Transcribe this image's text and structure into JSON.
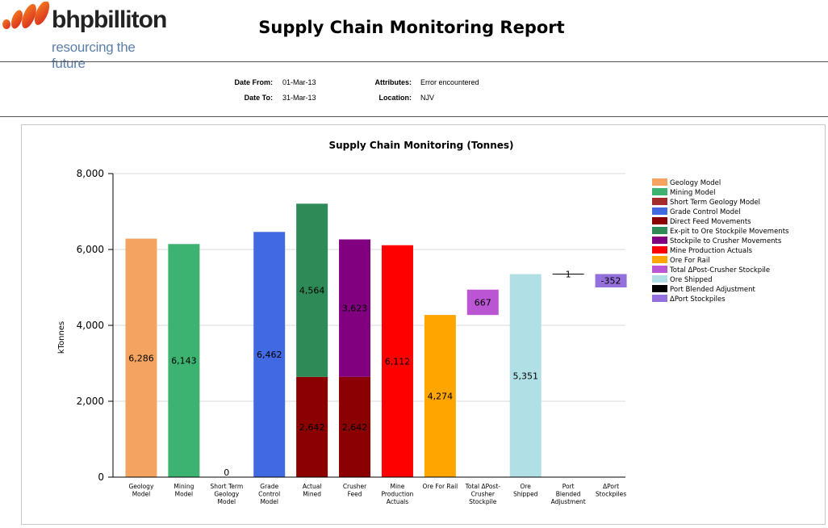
{
  "header": {
    "logo_word": "bhpbilliton",
    "logo_tagline": "resourcing the future",
    "report_title": "Supply Chain Monitoring Report"
  },
  "parameters": {
    "date_from_label": "Date From:",
    "date_from": "01-Mar-13",
    "date_to_label": "Date To:",
    "date_to": "31-Mar-13",
    "attributes_label": "Attributes:",
    "attributes": "Error encountered",
    "location_label": "Location:",
    "location": "NJV"
  },
  "colors": {
    "Geology Model": "#f4a460",
    "Mining Model": "#3cb371",
    "Short Term Geology Model": "#a52a2a",
    "Grade Control Model": "#4169e1",
    "Direct Feed Movements": "#8b0000",
    "Ex-pit to Ore Stockpile Movements": "#2e8b57",
    "Stockpile to Crusher Movements": "#800080",
    "Mine Production Actuals": "#ff0000",
    "Ore For Rail": "#ffa500",
    "Total ΔPost-Crusher Stockpile": "#ba55d3",
    "Ore Shipped": "#b0e0e6",
    "Port Blended Adjustment": "#000000",
    "ΔPort Stockpiles": "#9370db"
  },
  "chart_data": {
    "type": "bar",
    "title": "Supply Chain Monitoring (Tonnes)",
    "ylabel": "kTonnes",
    "ylim": [
      0,
      8000
    ],
    "yticks": [
      0,
      2000,
      4000,
      6000,
      8000
    ],
    "ytick_labels": [
      "0",
      "2,000",
      "4,000",
      "6,000",
      "8,000"
    ],
    "grid": true,
    "legend_position": "right",
    "categories": [
      [
        "Geology",
        "Model"
      ],
      [
        "Mining",
        "Model"
      ],
      [
        "Short Term",
        "Geology",
        "Model"
      ],
      [
        "Grade",
        "Control",
        "Model"
      ],
      [
        "Actual",
        "Mined"
      ],
      [
        "Crusher",
        "Feed"
      ],
      [
        "Mine",
        "Production",
        "Actuals"
      ],
      [
        "Ore For Rail"
      ],
      [
        "Total ΔPost-",
        "Crusher",
        "Stockpile"
      ],
      [
        "Ore",
        "Shipped"
      ],
      [
        "Port",
        "Blended",
        "Adjustment"
      ],
      [
        "ΔPort",
        "Stockpiles"
      ]
    ],
    "legend": [
      "Geology Model",
      "Mining Model",
      "Short Term Geology Model",
      "Grade Control Model",
      "Direct Feed Movements",
      "Ex-pit to Ore Stockpile Movements",
      "Stockpile to Crusher Movements",
      "Mine Production Actuals",
      "Ore For Rail",
      "Total ΔPost-Crusher Stockpile",
      "Ore Shipped",
      "Port Blended Adjustment",
      "ΔPort Stockpiles"
    ],
    "segments": [
      {
        "cat": 0,
        "series": "Geology Model",
        "base": 0,
        "value": 6286,
        "label": "6,286"
      },
      {
        "cat": 1,
        "series": "Mining Model",
        "base": 0,
        "value": 6143,
        "label": "6,143"
      },
      {
        "cat": 2,
        "series": "Short Term Geology Model",
        "base": 0,
        "value": 0,
        "label": "0"
      },
      {
        "cat": 3,
        "series": "Grade Control Model",
        "base": 0,
        "value": 6462,
        "label": "6,462"
      },
      {
        "cat": 4,
        "series": "Direct Feed Movements",
        "base": 0,
        "value": 2642,
        "label": "2,642"
      },
      {
        "cat": 4,
        "series": "Ex-pit to Ore Stockpile Movements",
        "base": 2642,
        "value": 4564,
        "label": "4,564"
      },
      {
        "cat": 5,
        "series": "Direct Feed Movements",
        "base": 0,
        "value": 2642,
        "label": "2,642"
      },
      {
        "cat": 5,
        "series": "Stockpile to Crusher Movements",
        "base": 2642,
        "value": 3623,
        "label": "3,623"
      },
      {
        "cat": 6,
        "series": "Mine Production Actuals",
        "base": 0,
        "value": 6112,
        "label": "6,112"
      },
      {
        "cat": 7,
        "series": "Ore For Rail",
        "base": 0,
        "value": 4274,
        "label": "4,274"
      },
      {
        "cat": 8,
        "series": "Total ΔPost-Crusher Stockpile",
        "base": 4274,
        "value": 667,
        "label": "667"
      },
      {
        "cat": 9,
        "series": "Ore Shipped",
        "base": 0,
        "value": 5351,
        "label": "5,351"
      },
      {
        "cat": 10,
        "series": "Port Blended Adjustment",
        "base": 5351,
        "value": 1,
        "label": "1"
      },
      {
        "cat": 11,
        "series": "ΔPort Stockpiles",
        "base": 5000,
        "value": 352,
        "label": "-352"
      }
    ]
  }
}
